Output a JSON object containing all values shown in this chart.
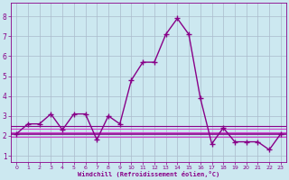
{
  "xlabel": "Windchill (Refroidissement éolien,°C)",
  "bg_color": "#cce8f0",
  "line_color": "#880088",
  "grid_color": "#aaccdd",
  "xlim": [
    -0.5,
    23.5
  ],
  "ylim": [
    0.7,
    8.7
  ],
  "xticks": [
    0,
    1,
    2,
    3,
    4,
    5,
    6,
    7,
    8,
    9,
    10,
    11,
    12,
    13,
    14,
    15,
    16,
    17,
    18,
    19,
    20,
    21,
    22,
    23
  ],
  "yticks": [
    1,
    2,
    3,
    4,
    5,
    6,
    7,
    8
  ],
  "main_series": {
    "x": [
      0,
      1,
      2,
      3,
      4,
      5,
      6,
      7,
      8,
      9,
      10,
      11,
      12,
      13,
      14,
      15,
      16,
      17,
      18,
      19,
      20,
      21,
      22,
      23
    ],
    "y": [
      2.1,
      2.6,
      2.6,
      3.1,
      2.3,
      3.1,
      3.1,
      1.8,
      3.0,
      2.6,
      4.8,
      5.7,
      5.7,
      7.1,
      7.9,
      7.1,
      3.9,
      1.6,
      2.4,
      1.7,
      1.7,
      1.7,
      1.3,
      2.1
    ],
    "color": "#880088",
    "marker": "+",
    "markersize": 4,
    "linewidth": 1.0
  },
  "hlines": [
    {
      "y": 2.1,
      "color": "#880088",
      "linewidth": 1.2
    },
    {
      "y": 2.2,
      "color": "#cc44cc",
      "linewidth": 0.8
    },
    {
      "y": 1.95,
      "color": "#cc44cc",
      "linewidth": 0.8
    },
    {
      "y": 2.35,
      "color": "#cc44cc",
      "linewidth": 0.8
    },
    {
      "y": 2.5,
      "color": "#880088",
      "linewidth": 0.8
    }
  ]
}
